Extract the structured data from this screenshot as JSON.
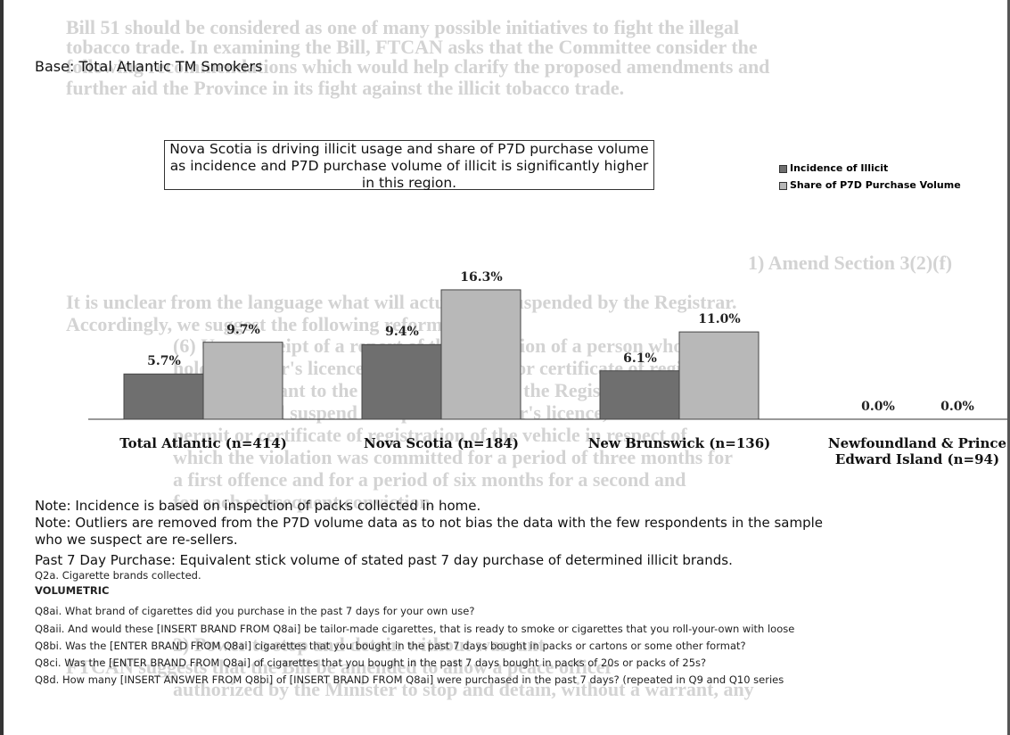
{
  "background_text": [
    "Bill 51 should be considered as one of many possible initiatives to fight the illegal",
    "tobacco trade.  In examining the Bill, FTCAN asks that the Committee consider the",
    "following recommendations which would help clarify the proposed amendments and",
    "further aid the Province in its fight against the illicit tobacco trade.",
    "1)   Amend Section 3(2)(f)",
    "It is unclear from the language what will actually be suspended by the Registrar.",
    "Accordingly, we suggest the following reformulation:",
    "(6) Upon receipt of a report of the conviction of a person who",
    "holds a driver's licence or vehicle permit or certificate of registration",
    "issued pursuant to the Motor Vehicle Act, the Registrar of Motor",
    "Vehicles shall suspend said person's driver's licence, or the vehicle",
    "permit or certificate of registration of the vehicle in respect of",
    "which the violation was committed for a period of three months for",
    "a first offence and for a period of six months for a second and",
    "for each subsequent conviction.",
    "2)   Power to stop and detain without warrant",
    "FTCAN suggests that the Bill be amended to allow a peace officer",
    "authorized by the Minister to stop and detain, without a warrant, any"
  ],
  "base": "Base: Total Atlantic TM Smokers",
  "callout": "Nova Scotia is driving illicit usage and share of P7D purchase volume as incidence and P7D purchase volume of illicit is significantly higher in this region.",
  "notes": [
    "Note: Incidence is based on inspection of packs collected in home.",
    "Note:  Outliers are removed from the P7D volume data as to not bias the data with the few respondents in the sample",
    "who we suspect are re-sellers.",
    "Past 7 Day Purchase: Equivalent stick volume of stated past 7 day purchase of determined illicit brands."
  ],
  "questions": [
    "Q2a. Cigarette brands collected.",
    "VOLUMETRIC",
    "Q8ai. What brand of cigarettes did you purchase in the past 7 days for your own use?",
    "Q8aii. And would these [INSERT BRAND FROM Q8ai] be tailor-made cigarettes, that is ready to smoke or cigarettes that you roll-your-own with loose",
    "Q8bi. Was the [ENTER BRAND FROM Q8ai] cigarettes that you bought in the past 7 days bought in packs or cartons or some other format?",
    "Q8ci. Was the [ENTER BRAND FROM Q8ai] of cigarettes that you bought in the past 7 days bought in packs of 20s or packs of 25s?",
    "Q8d. How many [INSERT ANSWER FROM Q8bi] of [INSERT BRAND FROM Q8ai] were purchased in the past 7 days?     (repeated in Q9 and Q10 series"
  ],
  "chart_data": {
    "type": "bar",
    "categories": [
      "Total Atlantic (n=414)",
      "Nova Scotia (n=184)",
      "New Brunswick (n=136)",
      "Newfoundland & Prince Edward Island (n=94)"
    ],
    "series": [
      {
        "name": "Incidence of Illicit",
        "color": "#6f6f6f",
        "values": [
          5.7,
          9.4,
          6.1,
          0.0
        ],
        "value_labels": [
          "5.7%",
          "9.4%",
          "6.1%",
          "0.0%"
        ]
      },
      {
        "name": "Share of P7D Purchase Volume",
        "color": "#b8b8b8",
        "values": [
          9.7,
          16.3,
          11.0,
          0.0
        ],
        "value_labels": [
          "9.7%",
          "16.3%",
          "11.0%",
          "0.0%"
        ]
      }
    ],
    "legend": "top-right"
  }
}
